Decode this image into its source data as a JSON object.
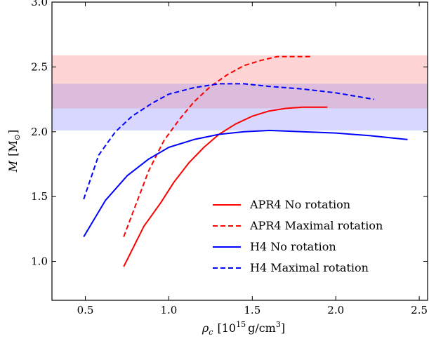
{
  "chart_data": {
    "type": "line",
    "xlabel_var": "ρ",
    "xlabel_sub": "c",
    "xlabel_unit_open": "[10",
    "xlabel_unit_exp": "15",
    "xlabel_unit_mid": "g/cm",
    "xlabel_unit_exp2": "3",
    "xlabel_unit_close": "]",
    "ylabel_var": "M",
    "ylabel_unit": "[M",
    "ylabel_unit_sym": "⊙",
    "ylabel_unit_close": "]",
    "xlim": [
      0.3,
      2.55
    ],
    "ylim": [
      0.7,
      3.0
    ],
    "xticks": [
      0.5,
      1.0,
      1.5,
      2.0,
      2.5
    ],
    "xtick_labels": [
      "0.5",
      "1.0",
      "1.5",
      "2.0",
      "2.5"
    ],
    "yticks": [
      1.0,
      1.5,
      2.0,
      2.5,
      3.0
    ],
    "ytick_labels": [
      "1.0",
      "1.5",
      "2.0",
      "2.5",
      "3.0"
    ],
    "bands": [
      {
        "ymin": 2.18,
        "ymax": 2.59,
        "color": "#ffd4d4"
      },
      {
        "ymin": 2.01,
        "ymax": 2.37,
        "color": "#d7d7ff"
      }
    ],
    "overlap_color": "#dcbcdc",
    "series": [
      {
        "name": "APR4  No rotation",
        "color": "#ff0000",
        "dash": false,
        "x": [
          0.73,
          0.85,
          0.95,
          1.03,
          1.12,
          1.21,
          1.3,
          1.4,
          1.5,
          1.6,
          1.7,
          1.8,
          1.9,
          1.95
        ],
        "y": [
          0.96,
          1.27,
          1.45,
          1.61,
          1.76,
          1.88,
          1.98,
          2.06,
          2.12,
          2.16,
          2.18,
          2.19,
          2.19,
          2.19
        ]
      },
      {
        "name": "APR4  Maximal rotation",
        "color": "#ff0000",
        "dash": true,
        "x": [
          0.73,
          0.8,
          0.88,
          0.97,
          1.06,
          1.15,
          1.25,
          1.35,
          1.45,
          1.55,
          1.65,
          1.75,
          1.85
        ],
        "y": [
          1.19,
          1.43,
          1.7,
          1.93,
          2.09,
          2.23,
          2.35,
          2.44,
          2.51,
          2.55,
          2.58,
          2.58,
          2.58
        ]
      },
      {
        "name": "H4  No rotation",
        "color": "#0000ff",
        "dash": false,
        "x": [
          0.49,
          0.62,
          0.75,
          0.88,
          1.0,
          1.15,
          1.3,
          1.45,
          1.6,
          1.8,
          2.0,
          2.2,
          2.43
        ],
        "y": [
          1.19,
          1.47,
          1.66,
          1.79,
          1.88,
          1.94,
          1.98,
          2.0,
          2.01,
          2.0,
          1.99,
          1.97,
          1.94
        ]
      },
      {
        "name": "H4  Maximal rotation",
        "color": "#0000ff",
        "dash": true,
        "x": [
          0.49,
          0.58,
          0.68,
          0.78,
          0.9,
          1.0,
          1.15,
          1.3,
          1.45,
          1.6,
          1.8,
          2.0,
          2.23
        ],
        "y": [
          1.48,
          1.82,
          2.0,
          2.12,
          2.22,
          2.29,
          2.34,
          2.37,
          2.37,
          2.35,
          2.33,
          2.3,
          2.25
        ]
      }
    ],
    "legend_position": "bottom-right"
  }
}
